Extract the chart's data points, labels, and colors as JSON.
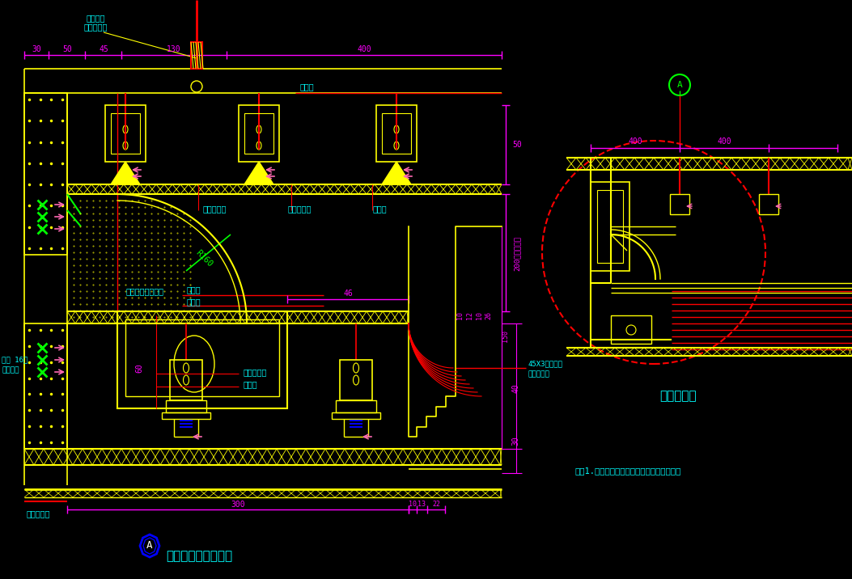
{
  "bg_color": "#000000",
  "C": "#00FFFF",
  "Y": "#FFFF00",
  "M": "#FF00FF",
  "R": "#FF0000",
  "G": "#00FF00",
  "W": "#FFFFFF",
  "B": "#0000FF",
  "LG": "#90EE90",
  "pink": "#FF69B4",
  "title_main": "吊顶灯槽带剖面大样",
  "title_right": "灯槽带剖面",
  "note": "注：1.纸面石膏板表面刷乳胶漆或粘贴壁纸。"
}
